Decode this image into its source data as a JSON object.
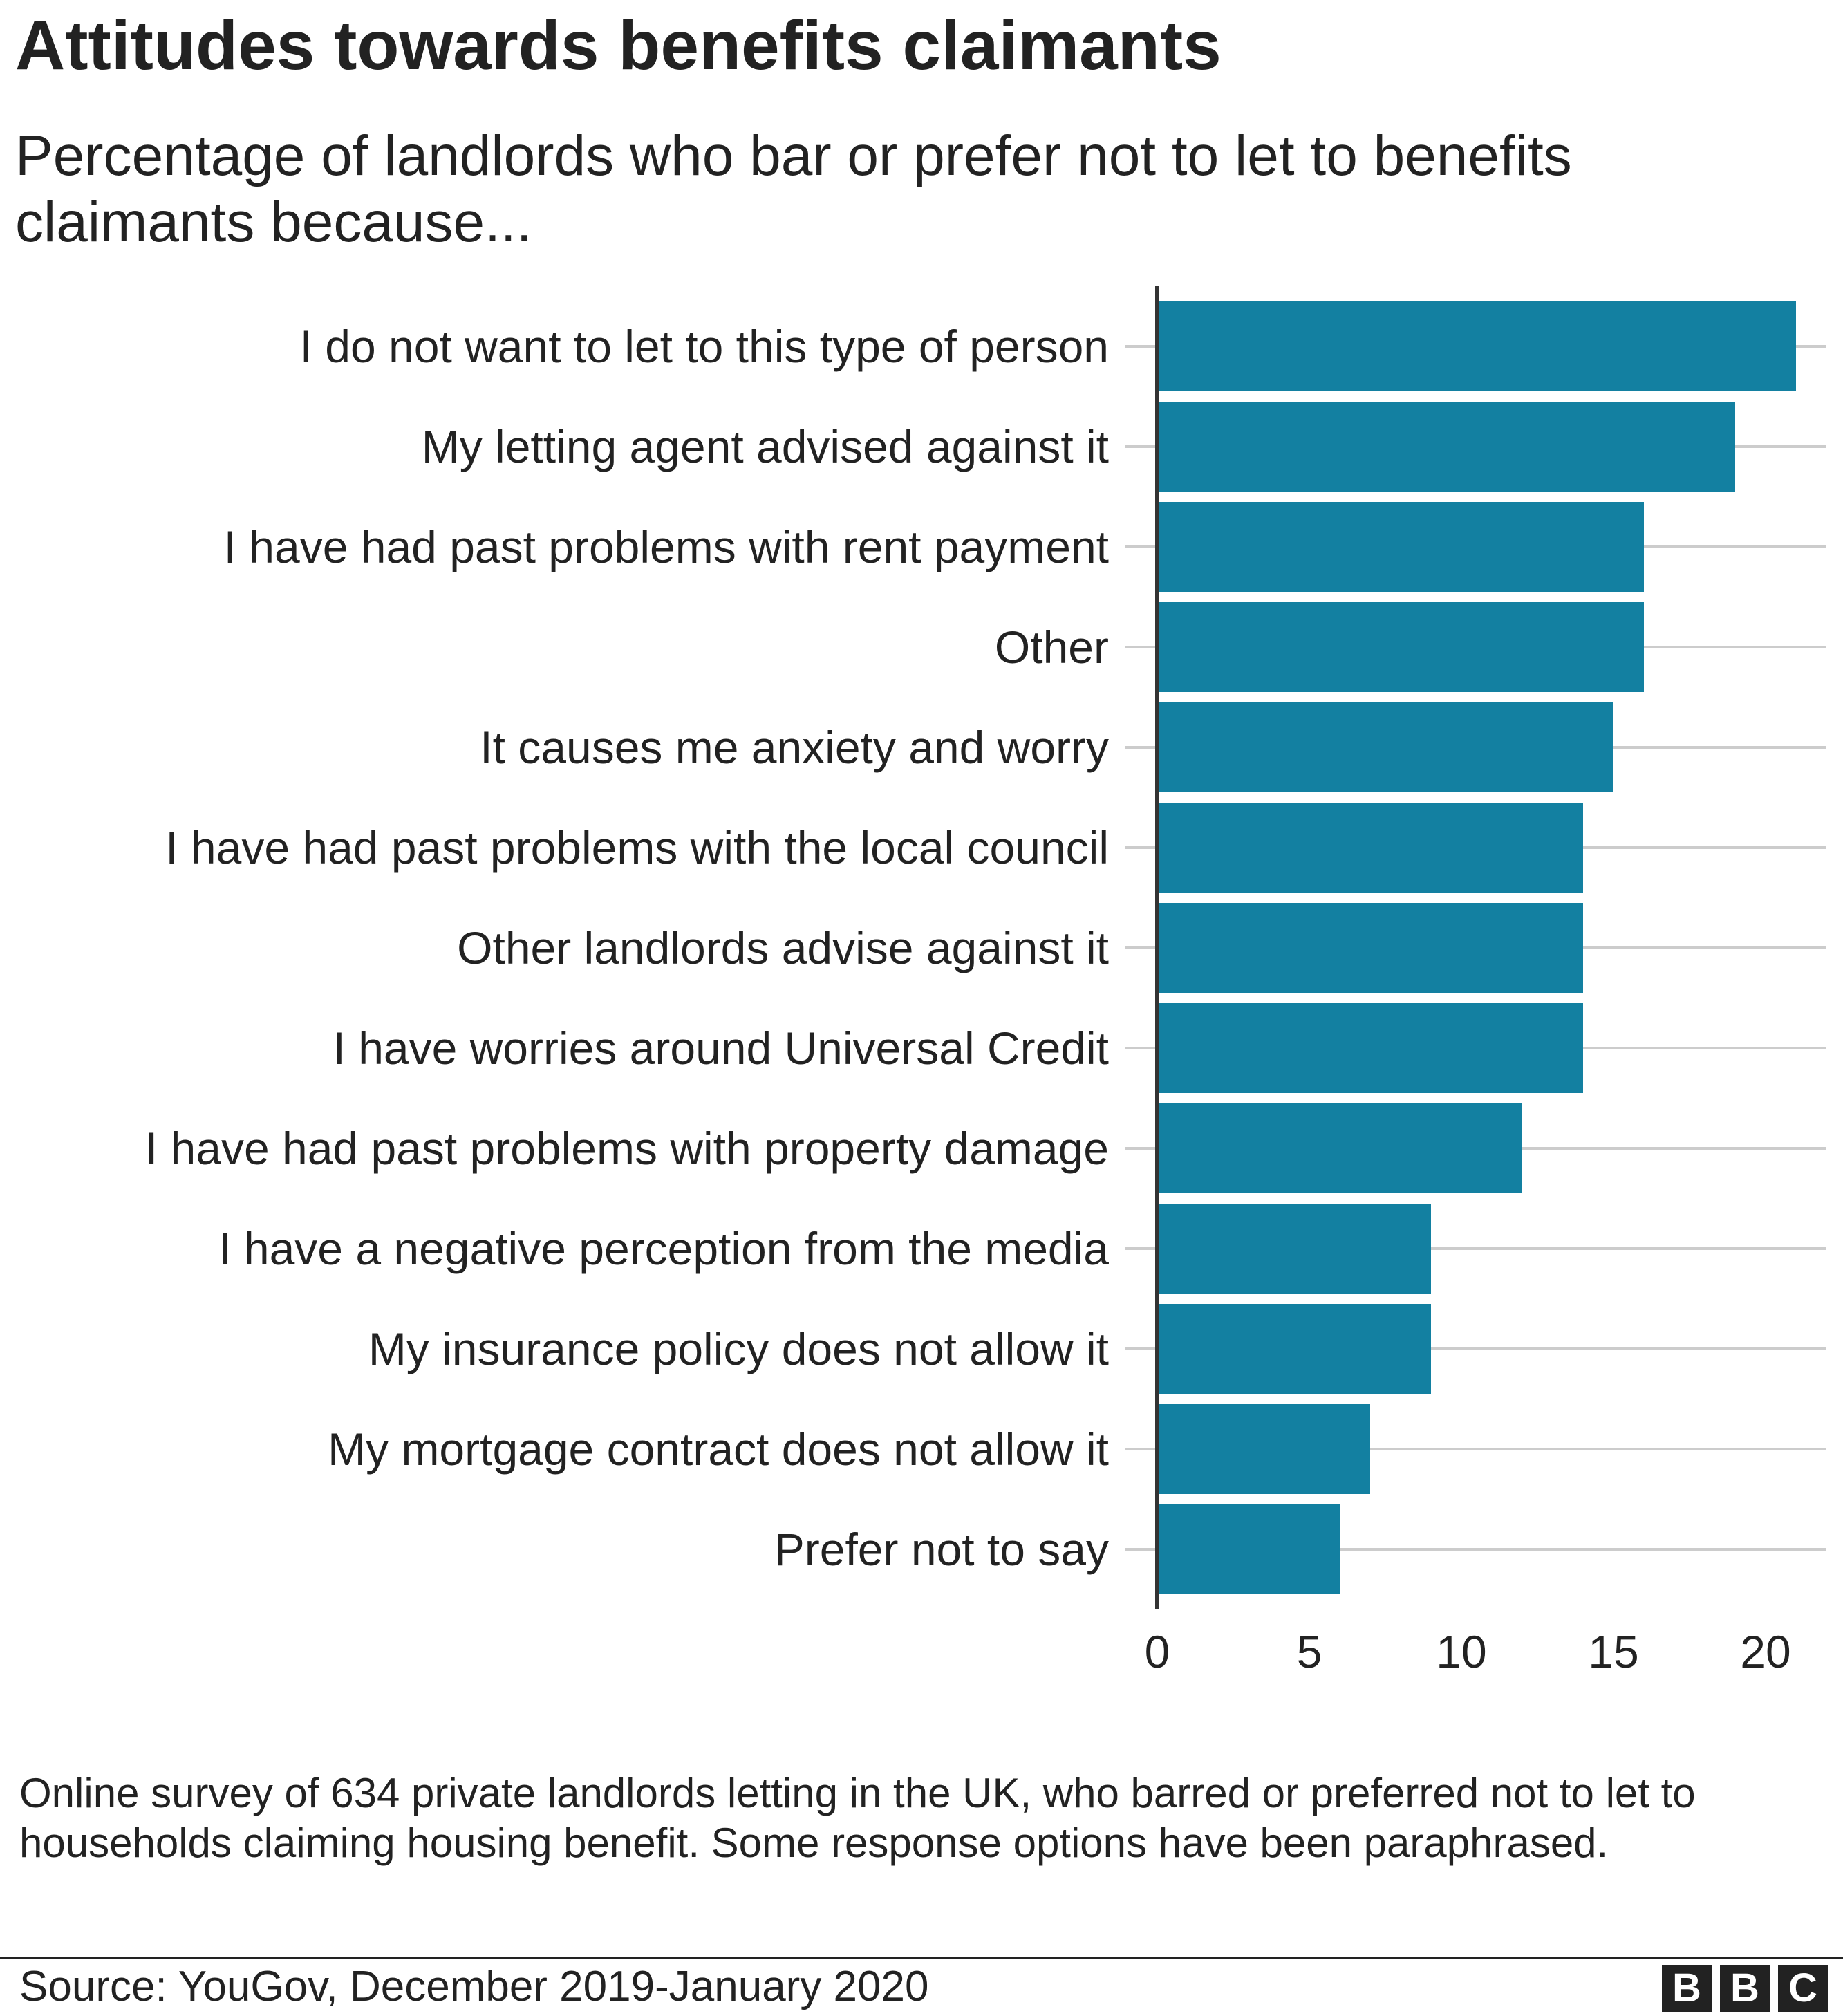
{
  "title": "Attitudes towards benefits claimants",
  "subtitle": "Percentage of landlords who bar or prefer not to let to benefits claimants because...",
  "footnote": "Online survey of 634 private landlords letting in the UK, who barred or preferred not to let to households claiming housing benefit. Some response options have been paraphrased.",
  "source": "Source: YouGov, December 2019-January 2020",
  "logo": [
    "B",
    "B",
    "C"
  ],
  "colors": {
    "bar": "#1380A1",
    "grid": "#cccccc",
    "axis": "#333333"
  },
  "chart_data": {
    "type": "bar",
    "orientation": "horizontal",
    "categories": [
      "I do not want to let to this type of person",
      "My letting agent advised against it",
      "I have had past problems with rent payment",
      "Other",
      "It causes me anxiety and worry",
      "I have had past problems with the local council",
      "Other landlords advise against it",
      "I have worries around Universal Credit",
      "I have had past problems with property damage",
      "I have a negative perception from the media",
      "My insurance policy does not allow it",
      "My mortgage contract does not allow it",
      "Prefer not to say"
    ],
    "values": [
      21,
      19,
      16,
      16,
      15,
      14,
      14,
      14,
      12,
      9,
      9,
      7,
      6
    ],
    "xlim": [
      0,
      22
    ],
    "xticks": [
      "0",
      "5",
      "10",
      "15",
      "20"
    ],
    "xtick_values": [
      0,
      5,
      10,
      15,
      20
    ],
    "grid": true
  }
}
